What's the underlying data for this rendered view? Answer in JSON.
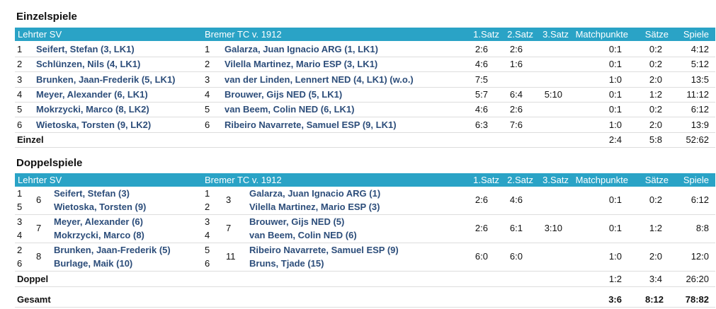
{
  "einzel": {
    "title": "Einzelspiele",
    "header": {
      "home": "Lehrter SV",
      "away": "Bremer TC v. 1912",
      "s1": "1.Satz",
      "s2": "2.Satz",
      "s3": "3.Satz",
      "mp": "Matchpunkte",
      "saetze": "Sätze",
      "spiele": "Spiele"
    },
    "rows": [
      {
        "hn": "1",
        "home": "Seifert, Stefan (3, LK1)",
        "an": "1",
        "away": "Galarza, Juan Ignacio ARG (1, LK1)",
        "s1": "2:6",
        "s2": "2:6",
        "s3": "",
        "mp": "0:1",
        "saetze": "0:2",
        "spiele": "4:12"
      },
      {
        "hn": "2",
        "home": "Schlünzen, Nils (4, LK1)",
        "an": "2",
        "away": "Vilella Martinez, Mario ESP (3, LK1)",
        "s1": "4:6",
        "s2": "1:6",
        "s3": "",
        "mp": "0:1",
        "saetze": "0:2",
        "spiele": "5:12"
      },
      {
        "hn": "3",
        "home": "Brunken, Jaan-Frederik (5, LK1)",
        "an": "3",
        "away": "van der Linden, Lennert NED (4, LK1) (w.o.)",
        "s1": "7:5",
        "s2": "",
        "s3": "",
        "mp": "1:0",
        "saetze": "2:0",
        "spiele": "13:5"
      },
      {
        "hn": "4",
        "home": "Meyer, Alexander (6, LK1)",
        "an": "4",
        "away": "Brouwer, Gijs NED (5, LK1)",
        "s1": "5:7",
        "s2": "6:4",
        "s3": "5:10",
        "mp": "0:1",
        "saetze": "1:2",
        "spiele": "11:12"
      },
      {
        "hn": "5",
        "home": "Mokrzycki, Marco (8, LK2)",
        "an": "5",
        "away": "van Beem, Colin NED (6, LK1)",
        "s1": "4:6",
        "s2": "2:6",
        "s3": "",
        "mp": "0:1",
        "saetze": "0:2",
        "spiele": "6:12"
      },
      {
        "hn": "6",
        "home": "Wietoska, Torsten (9, LK2)",
        "an": "6",
        "away": "Ribeiro Navarrete, Samuel ESP (9, LK1)",
        "s1": "6:3",
        "s2": "7:6",
        "s3": "",
        "mp": "1:0",
        "saetze": "2:0",
        "spiele": "13:9"
      }
    ],
    "summary": {
      "label": "Einzel",
      "mp": "2:4",
      "saetze": "5:8",
      "spiele": "52:62"
    }
  },
  "doppel": {
    "title": "Doppelspiele",
    "header": {
      "home": "Lehrter SV",
      "away": "Bremer TC v. 1912",
      "s1": "1.Satz",
      "s2": "2.Satz",
      "s3": "3.Satz",
      "mp": "Matchpunkte",
      "saetze": "Sätze",
      "spiele": "Spiele"
    },
    "rows": [
      {
        "hn1": "1",
        "hn2": "5",
        "hsum": "6",
        "home1": "Seifert, Stefan (3)",
        "home2": "Wietoska, Torsten (9)",
        "an1": "1",
        "an2": "2",
        "asum": "3",
        "away1": "Galarza, Juan Ignacio ARG (1)",
        "away2": "Vilella Martinez, Mario ESP (3)",
        "s1": "2:6",
        "s2": "4:6",
        "s3": "",
        "mp": "0:1",
        "saetze": "0:2",
        "spiele": "6:12"
      },
      {
        "hn1": "3",
        "hn2": "4",
        "hsum": "7",
        "home1": "Meyer, Alexander (6)",
        "home2": "Mokrzycki, Marco (8)",
        "an1": "3",
        "an2": "4",
        "asum": "7",
        "away1": "Brouwer, Gijs NED (5)",
        "away2": "van Beem, Colin NED (6)",
        "s1": "2:6",
        "s2": "6:1",
        "s3": "3:10",
        "mp": "0:1",
        "saetze": "1:2",
        "spiele": "8:8"
      },
      {
        "hn1": "2",
        "hn2": "6",
        "hsum": "8",
        "home1": "Brunken, Jaan-Frederik (5)",
        "home2": "Burlage, Maik (10)",
        "an1": "5",
        "an2": "6",
        "asum": "11",
        "away1": "Ribeiro Navarrete, Samuel ESP (9)",
        "away2": "Bruns, Tjade (15)",
        "s1": "6:0",
        "s2": "6:0",
        "s3": "",
        "mp": "1:0",
        "saetze": "2:0",
        "spiele": "12:0"
      }
    ],
    "summary": {
      "label": "Doppel",
      "mp": "1:2",
      "saetze": "3:4",
      "spiele": "26:20"
    }
  },
  "gesamt": {
    "label": "Gesamt",
    "mp": "3:6",
    "saetze": "8:12",
    "spiele": "78:82"
  }
}
